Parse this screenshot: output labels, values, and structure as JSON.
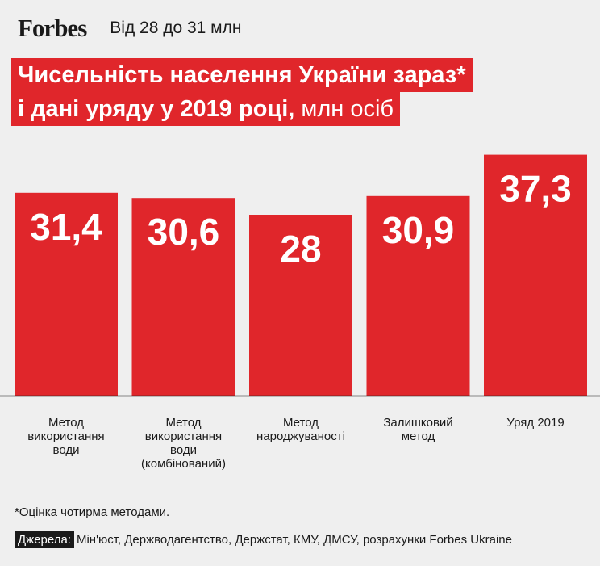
{
  "header": {
    "logo": "Forbes",
    "subtitle": "Від 28 до 31 млн"
  },
  "title": {
    "line1": "Чисельність населення України зараз*",
    "line2_main": "і дані уряду у 2019 році,",
    "line2_unit": " млн осіб"
  },
  "chart_data": {
    "type": "bar",
    "title": "Чисельність населення України зараз* і дані уряду у 2019 році, млн осіб",
    "categories": [
      [
        "Метод",
        "використання",
        "води"
      ],
      [
        "Метод",
        "використання",
        "води",
        "(комбінований)"
      ],
      [
        "Метод",
        "народжуваності"
      ],
      [
        "Залишковий",
        "метод"
      ],
      [
        "Уряд 2019"
      ]
    ],
    "values": [
      31.4,
      30.6,
      28,
      30.9,
      37.3
    ],
    "value_labels": [
      "31,4",
      "30,6",
      "28",
      "30,9",
      "37,3"
    ],
    "bar_color": "#e0262b",
    "ylim": [
      0,
      40
    ],
    "grid": false
  },
  "footnote": "*Оцінка чотирма методами.",
  "sources": {
    "label": "Джерела:",
    "text": "Мін'юст, Держводагентство, Держстат, КМУ, ДМСУ, розрахунки Forbes Ukraine"
  }
}
